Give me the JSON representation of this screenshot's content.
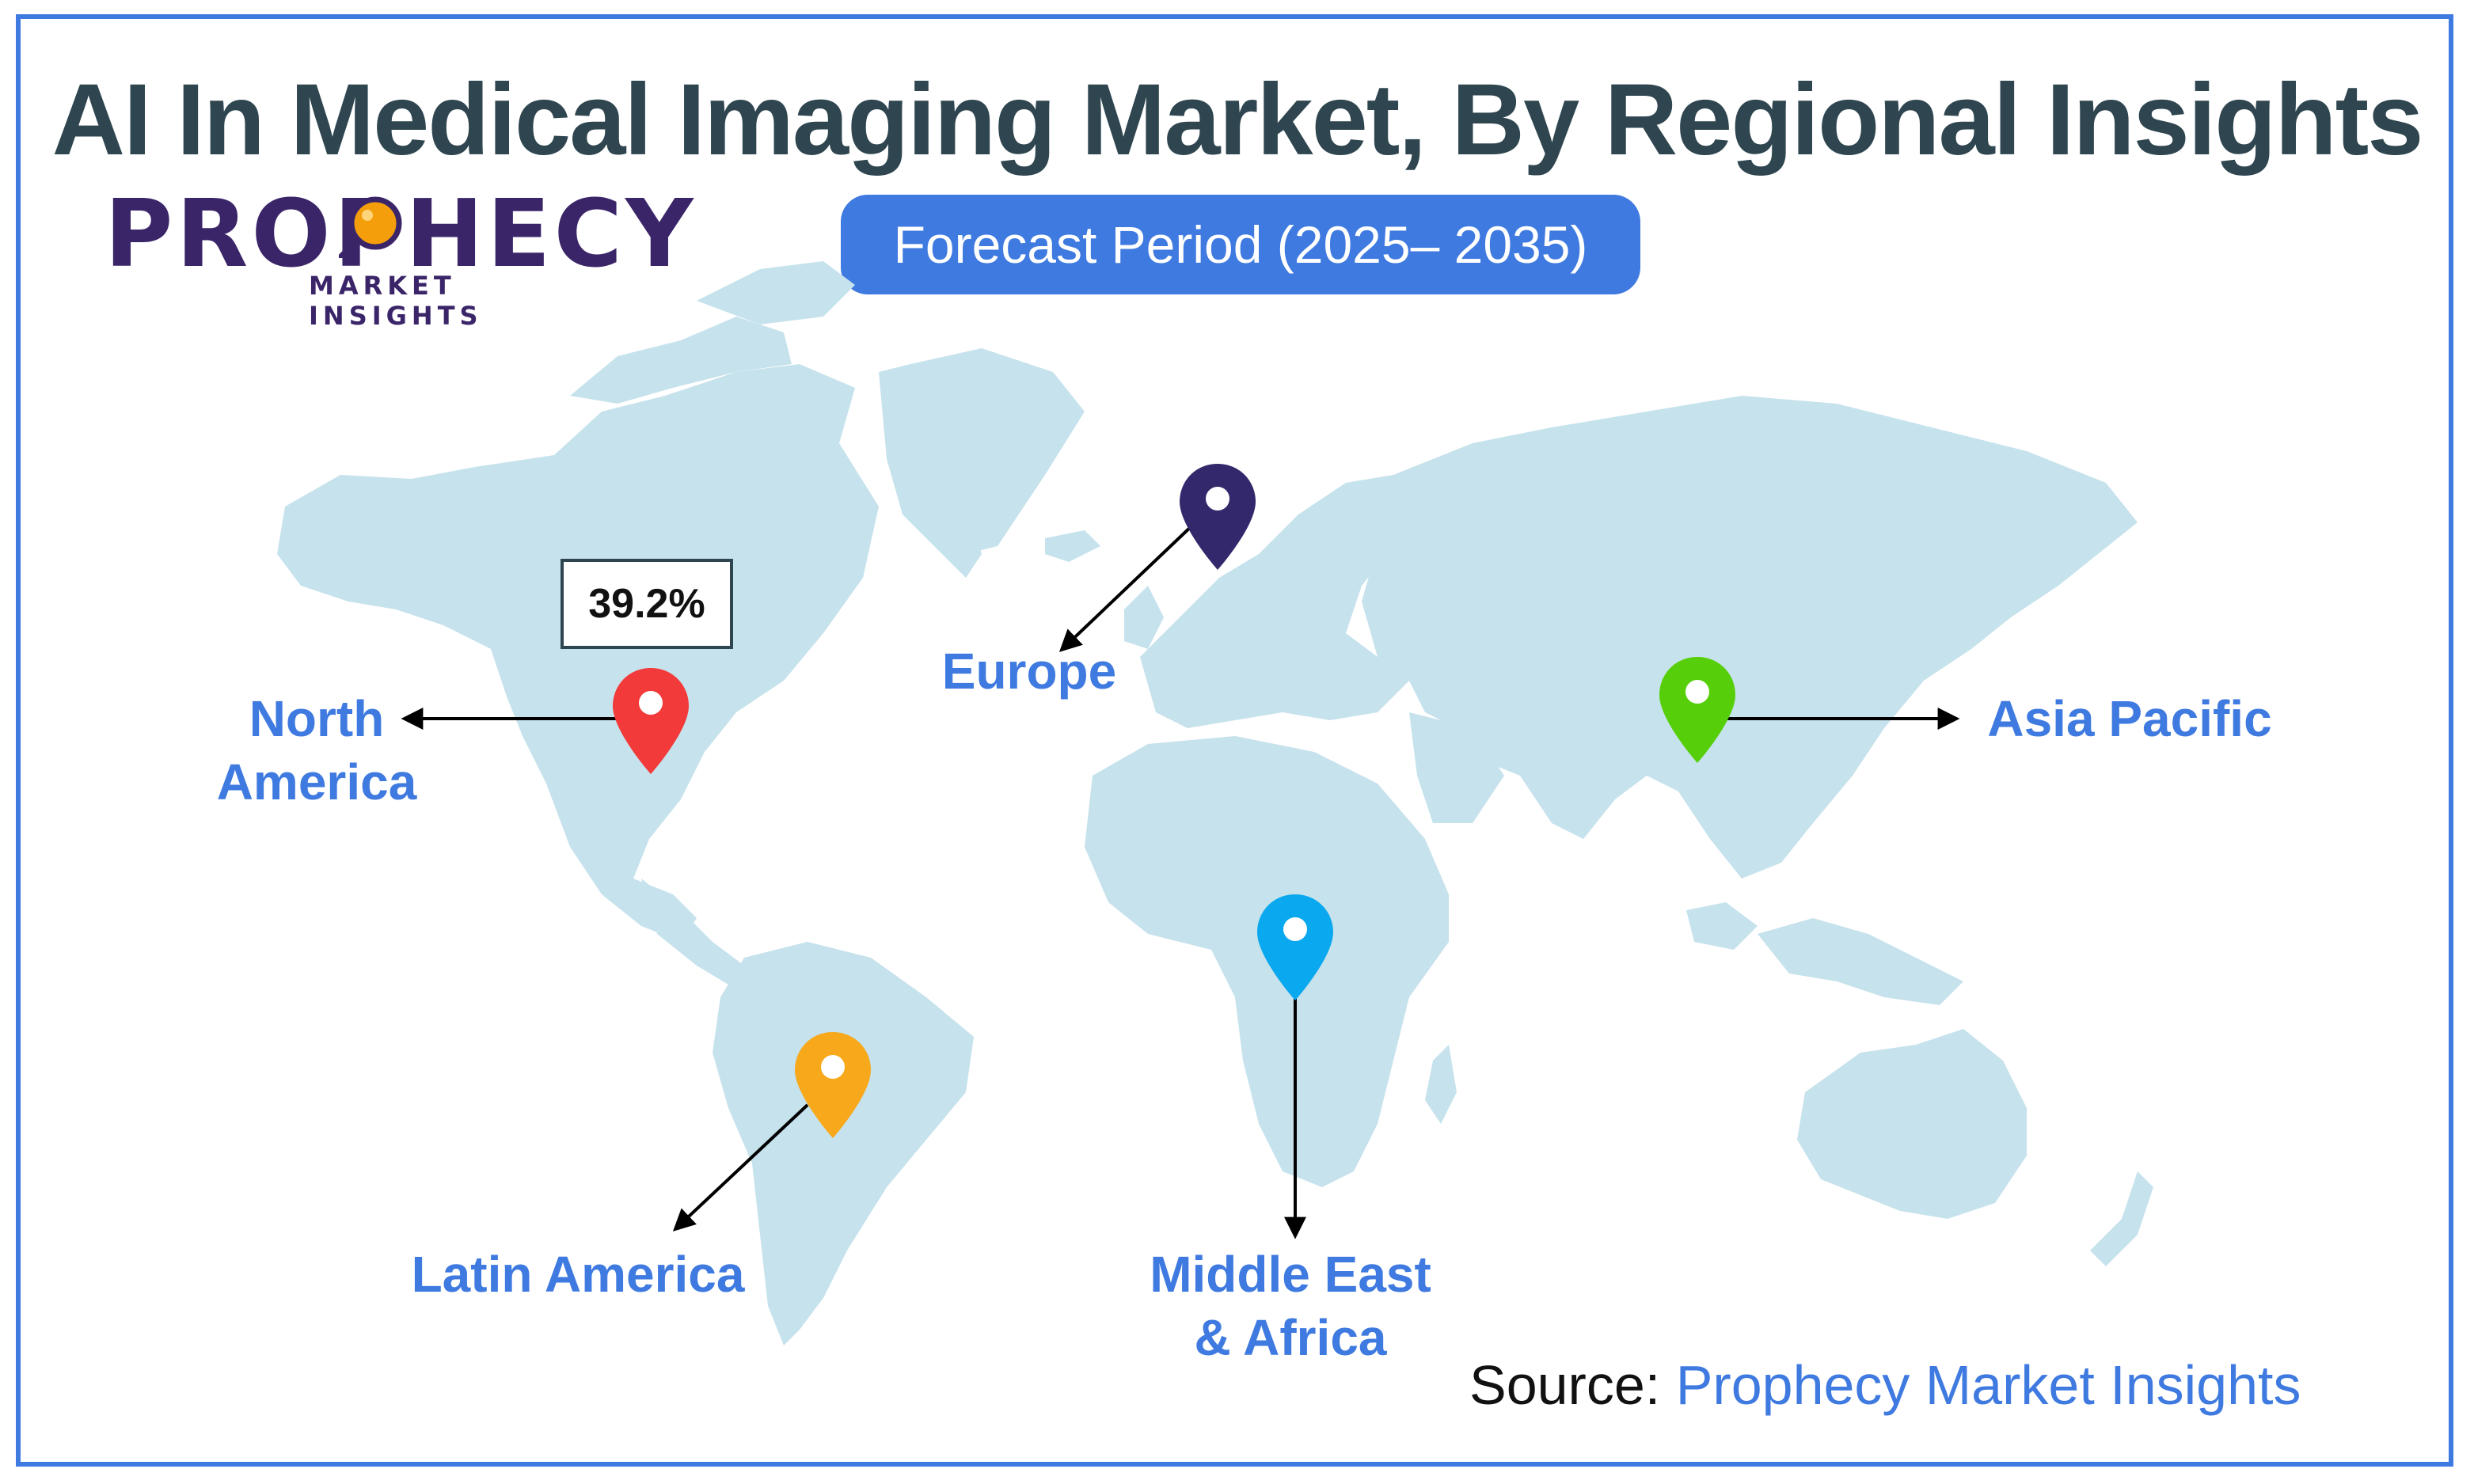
{
  "title": "AI In Medical Imaging Market, By Regional Insights",
  "forecast": "Forecast Period (2025– 2035)",
  "logo": {
    "name": "PROPHECY",
    "sub": "MARKET INSIGHTS",
    "color": "#3a2569",
    "accent": "#f59e0b"
  },
  "regions": {
    "north_america": {
      "line1": "North",
      "line2": "America",
      "share": "39.2%",
      "pin_color": "#f23a3a"
    },
    "europe": {
      "label": "Europe",
      "pin_color": "#33286b"
    },
    "asia_pacific": {
      "label": "Asia Pacific",
      "pin_color": "#56cf0a"
    },
    "latin_america": {
      "label": "Latin America",
      "pin_color": "#f7a81b"
    },
    "mea": {
      "line1": "Middle East",
      "line2": "& Africa",
      "pin_color": "#0aa8ee"
    }
  },
  "source": {
    "prefix": "Source: ",
    "name": "Prophecy Market Insights"
  },
  "colors": {
    "accent": "#3f7ae0",
    "land": "#c6e2ec",
    "title": "#2f4650"
  }
}
